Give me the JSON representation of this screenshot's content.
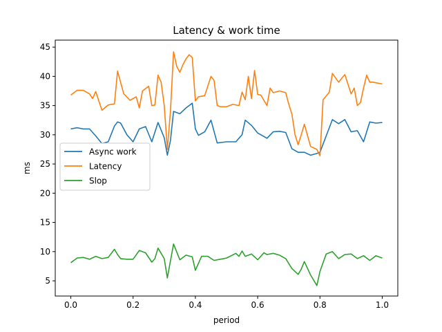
{
  "chart_data": {
    "type": "line",
    "title": "Latency & work time",
    "xlabel": "period",
    "ylabel": "ms",
    "xlim": [
      -0.05,
      1.05
    ],
    "ylim": [
      2.4,
      46.2
    ],
    "grid": false,
    "legend_position": "center-left",
    "xticks": [
      0.0,
      0.2,
      0.4,
      0.6,
      0.8,
      1.0
    ],
    "xtick_labels": [
      "0.0",
      "0.2",
      "0.4",
      "0.6",
      "0.8",
      "1.0"
    ],
    "yticks": [
      5,
      10,
      15,
      20,
      25,
      30,
      35,
      40,
      45
    ],
    "ytick_labels": [
      "5",
      "10",
      "15",
      "20",
      "25",
      "30",
      "35",
      "40",
      "45"
    ],
    "series": [
      {
        "name": "Async work",
        "color": "#1f77b4",
        "x": [
          0.0,
          0.02,
          0.04,
          0.06,
          0.08,
          0.1,
          0.12,
          0.14,
          0.15,
          0.16,
          0.18,
          0.2,
          0.22,
          0.24,
          0.26,
          0.28,
          0.3,
          0.31,
          0.32,
          0.33,
          0.35,
          0.37,
          0.39,
          0.4,
          0.41,
          0.43,
          0.45,
          0.47,
          0.5,
          0.53,
          0.55,
          0.56,
          0.58,
          0.6,
          0.61,
          0.63,
          0.65,
          0.67,
          0.69,
          0.71,
          0.73,
          0.75,
          0.77,
          0.79,
          0.8,
          0.82,
          0.84,
          0.86,
          0.88,
          0.9,
          0.92,
          0.94,
          0.96,
          0.98,
          1.0
        ],
        "y": [
          31.0,
          31.2,
          31.0,
          31.0,
          29.8,
          28.5,
          28.8,
          31.5,
          32.2,
          32.0,
          30.0,
          28.8,
          31.0,
          31.4,
          28.8,
          32.1,
          29.5,
          26.5,
          29.0,
          34.0,
          33.6,
          34.6,
          35.4,
          31.0,
          29.9,
          30.5,
          32.5,
          28.6,
          28.8,
          28.8,
          30.0,
          32.5,
          31.6,
          30.3,
          30.0,
          29.4,
          30.5,
          30.6,
          30.4,
          27.6,
          27.0,
          27.0,
          26.5,
          26.8,
          27.0,
          29.8,
          32.6,
          31.9,
          32.6,
          30.5,
          30.7,
          28.8,
          32.2,
          32.0,
          32.1
        ]
      },
      {
        "name": "Latency",
        "color": "#ff7f0e",
        "x": [
          0.0,
          0.02,
          0.04,
          0.06,
          0.07,
          0.08,
          0.1,
          0.12,
          0.14,
          0.15,
          0.17,
          0.19,
          0.21,
          0.22,
          0.23,
          0.25,
          0.26,
          0.27,
          0.28,
          0.29,
          0.3,
          0.31,
          0.32,
          0.33,
          0.34,
          0.35,
          0.36,
          0.37,
          0.38,
          0.39,
          0.4,
          0.41,
          0.43,
          0.45,
          0.46,
          0.47,
          0.48,
          0.5,
          0.52,
          0.54,
          0.55,
          0.56,
          0.57,
          0.58,
          0.59,
          0.6,
          0.61,
          0.63,
          0.64,
          0.65,
          0.67,
          0.69,
          0.7,
          0.71,
          0.72,
          0.73,
          0.74,
          0.75,
          0.77,
          0.79,
          0.8,
          0.81,
          0.83,
          0.84,
          0.86,
          0.88,
          0.9,
          0.91,
          0.92,
          0.93,
          0.94,
          0.95,
          0.96,
          0.97,
          0.98,
          1.0
        ],
        "y": [
          36.8,
          37.6,
          37.6,
          37.0,
          36.2,
          37.4,
          34.2,
          35.1,
          35.3,
          40.9,
          37.0,
          35.9,
          36.5,
          34.6,
          37.5,
          38.3,
          35.0,
          35.1,
          40.2,
          39.0,
          35.0,
          27.5,
          34.0,
          44.2,
          41.7,
          40.7,
          42.0,
          43.0,
          43.7,
          43.2,
          35.8,
          36.5,
          36.7,
          40.0,
          39.3,
          35.0,
          34.8,
          34.8,
          35.2,
          35.0,
          37.3,
          36.0,
          40.0,
          36.2,
          41.0,
          36.9,
          36.8,
          35.0,
          38.0,
          37.2,
          37.5,
          37.2,
          35.2,
          33.5,
          30.0,
          28.3,
          30.0,
          31.8,
          28.0,
          27.5,
          26.4,
          36.0,
          37.3,
          40.5,
          39.0,
          40.3,
          37.0,
          38.0,
          35.0,
          35.5,
          38.0,
          40.2,
          39.0,
          39.0,
          38.9,
          38.7
        ]
      },
      {
        "name": "Slop",
        "color": "#2ca02c",
        "x": [
          0.0,
          0.02,
          0.04,
          0.06,
          0.08,
          0.1,
          0.12,
          0.14,
          0.15,
          0.16,
          0.18,
          0.2,
          0.22,
          0.24,
          0.26,
          0.27,
          0.28,
          0.3,
          0.31,
          0.33,
          0.35,
          0.37,
          0.39,
          0.4,
          0.42,
          0.44,
          0.46,
          0.48,
          0.5,
          0.53,
          0.54,
          0.55,
          0.56,
          0.58,
          0.6,
          0.62,
          0.63,
          0.65,
          0.67,
          0.69,
          0.71,
          0.73,
          0.74,
          0.75,
          0.77,
          0.79,
          0.8,
          0.82,
          0.84,
          0.86,
          0.88,
          0.9,
          0.92,
          0.94,
          0.96,
          0.98,
          1.0
        ],
        "y": [
          8.1,
          8.9,
          9.0,
          8.7,
          9.2,
          8.8,
          9.0,
          10.4,
          9.5,
          8.8,
          8.7,
          8.7,
          10.2,
          9.8,
          8.2,
          8.8,
          10.6,
          8.8,
          5.5,
          11.3,
          8.6,
          9.4,
          9.1,
          6.8,
          9.2,
          9.2,
          8.5,
          8.7,
          8.9,
          9.7,
          9.2,
          10.1,
          9.2,
          9.6,
          8.6,
          9.8,
          9.5,
          9.7,
          9.4,
          8.8,
          7.1,
          6.1,
          7.0,
          8.3,
          6.0,
          4.2,
          6.6,
          9.6,
          10.0,
          8.8,
          9.5,
          9.6,
          8.8,
          9.3,
          8.5,
          9.3,
          8.9
        ]
      }
    ]
  }
}
